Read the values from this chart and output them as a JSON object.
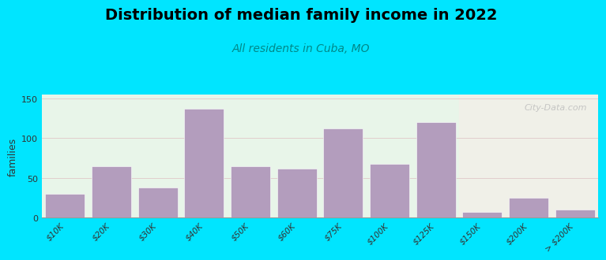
{
  "title": "Distribution of median family income in 2022",
  "subtitle": "All residents in Cuba, MO",
  "ylabel": "families",
  "categories": [
    "$10K",
    "$20K",
    "$30K",
    "$40K",
    "$50K",
    "$60K",
    "$75K",
    "$100K",
    "$125K",
    "$150K",
    "$200K",
    "> $200K"
  ],
  "values": [
    30,
    65,
    38,
    137,
    65,
    62,
    112,
    68,
    120,
    7,
    25,
    10
  ],
  "bar_color": "#b39dbd",
  "background_outer": "#00e5ff",
  "background_plot_left": "#e8f5e9",
  "background_plot_right": "#f0f0e8",
  "split_index": 8.5,
  "ylim": [
    0,
    155
  ],
  "yticks": [
    0,
    50,
    100,
    150
  ],
  "title_fontsize": 14,
  "subtitle_fontsize": 10,
  "ylabel_fontsize": 9,
  "watermark": "City-Data.com"
}
